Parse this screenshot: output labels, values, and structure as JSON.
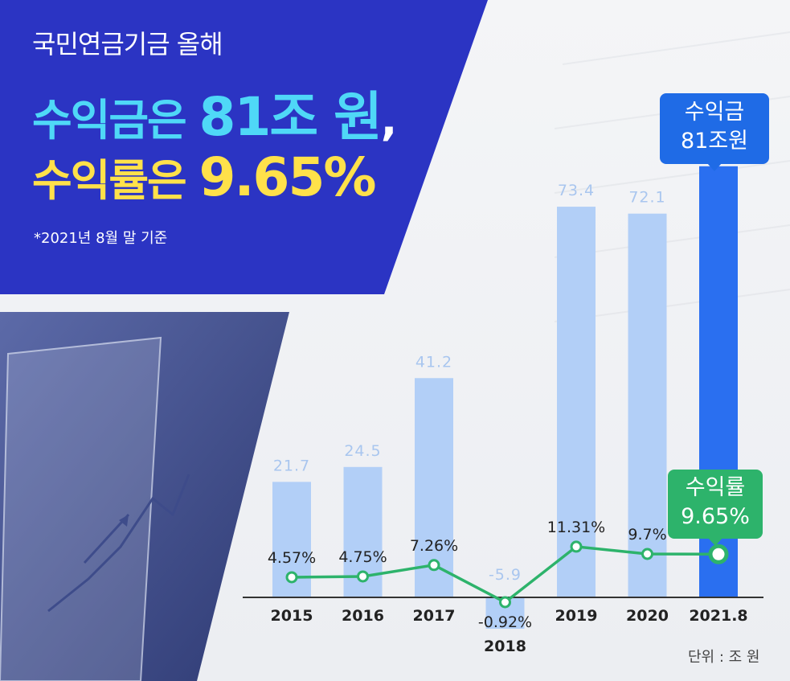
{
  "header": {
    "line1": "국민연금기금 올해",
    "line2_a": "수익금은 ",
    "line2_b": "81조 원",
    "line2_c": ",",
    "line3_a": "수익률은 ",
    "line3_b": "9.65%",
    "note": "*2021년 8월 말 기준"
  },
  "callouts": {
    "revenue_line1": "수익금",
    "revenue_line2": "81조원",
    "rate_line1": "수익률",
    "rate_line2": "9.65%"
  },
  "unit_note": "단위 : 조 원",
  "colors": {
    "banner": "#2b34c3",
    "bar": "#b2cff7",
    "bar_highlight": "#2a6ff0",
    "bar_label": "#a9c6ef",
    "line": "#2db36b",
    "callout_revenue": "#1f6be6",
    "callout_rate": "#2db36b"
  },
  "chart_data": {
    "type": "bar",
    "categories": [
      "2015",
      "2016",
      "2017",
      "2018",
      "2019",
      "2020",
      "2021.8"
    ],
    "series": [
      {
        "values": [
          21.7,
          24.5,
          41.2,
          -5.9,
          73.4,
          72.1,
          81.0
        ]
      },
      {
        "values": [
          4.57,
          4.75,
          7.26,
          -0.92,
          11.31,
          9.7,
          9.65
        ]
      }
    ],
    "bar_labels": [
      "21.7",
      "24.5",
      "41.2",
      "-5.9",
      "73.4",
      "72.1",
      ""
    ],
    "line_labels": [
      "4.57%",
      "4.75%",
      "7.26%",
      "-0.92%",
      "11.31%",
      "9.7%",
      ""
    ],
    "highlight_index": 6
  }
}
